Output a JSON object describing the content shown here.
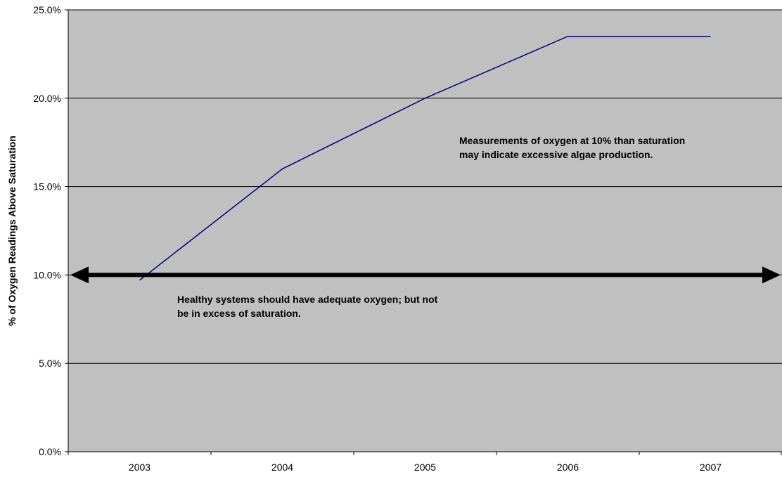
{
  "chart_data": {
    "type": "line",
    "categories": [
      "2003",
      "2004",
      "2005",
      "2006",
      "2007"
    ],
    "series": [
      {
        "values": [
          9.7,
          16.0,
          20.0,
          23.5,
          23.5
        ],
        "color": "#000080"
      }
    ],
    "ylabel": "% of Oxygen Readings Above Saturation",
    "xlabel": "",
    "title": "",
    "ylim": [
      0,
      25
    ],
    "y_ticks": [
      "0.0%",
      "5.0%",
      "10.0%",
      "15.0%",
      "20.0%",
      "25.0%"
    ],
    "y_tick_values": [
      0,
      5,
      10,
      15,
      20,
      25
    ],
    "grid": true,
    "plot_background": "#c0c0c0",
    "gridline_color": "#000000",
    "reference_line": {
      "value": 10.0,
      "style": "double-headed-arrow",
      "color": "#000000"
    },
    "annotations": [
      "Measurements of oxygen at 10% than saturation may indicate excessive algae production.",
      "Healthy systems should have adequate oxygen; but not be in excess of saturation."
    ]
  }
}
